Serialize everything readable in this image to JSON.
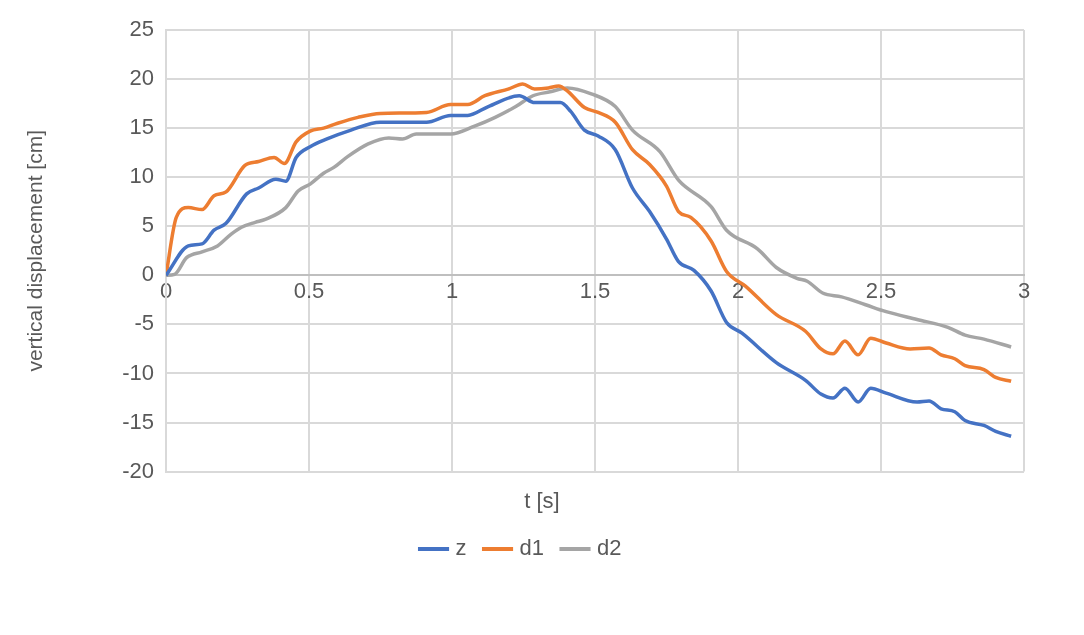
{
  "chart_data": {
    "type": "line",
    "xlabel": "t [s]",
    "ylabel": "vertical displacement [cm]",
    "xlim": [
      0,
      3
    ],
    "xticks": [
      0,
      0.5,
      1,
      1.5,
      2,
      2.5,
      3
    ],
    "ylim": [
      -20,
      25
    ],
    "yticks": [
      -20,
      -15,
      -10,
      -5,
      0,
      5,
      10,
      15,
      20,
      25
    ],
    "grid": true,
    "legend": "bottom",
    "marker": "none",
    "line_style": "solid",
    "series": [
      {
        "name": "z",
        "color": "#4472c4",
        "x": [
          0,
          0.078,
          0.126,
          0.168,
          0.21,
          0.282,
          0.324,
          0.384,
          0.419,
          0.455,
          0.504,
          0.563,
          0.647,
          0.749,
          0.911,
          0.995,
          1.055,
          1.127,
          1.235,
          1.289,
          1.379,
          1.415,
          1.463,
          1.511,
          1.571,
          1.631,
          1.691,
          1.75,
          1.792,
          1.846,
          1.906,
          1.96,
          2.014,
          2.134,
          2.236,
          2.29,
          2.332,
          2.374,
          2.42,
          2.464,
          2.518,
          2.626,
          2.668,
          2.71,
          2.758,
          2.794,
          2.86,
          2.901,
          2.955
        ],
        "values": [
          0,
          3.0,
          3.2,
          4.6,
          5.3,
          8.3,
          8.9,
          9.8,
          9.6,
          12.0,
          13.1,
          13.9,
          14.8,
          15.6,
          15.6,
          16.3,
          16.3,
          17.2,
          18.3,
          17.6,
          17.6,
          16.7,
          14.8,
          14.2,
          12.8,
          8.9,
          6.5,
          3.7,
          1.4,
          0.5,
          -1.6,
          -4.8,
          -5.9,
          -8.9,
          -10.7,
          -12.1,
          -12.5,
          -11.5,
          -12.9,
          -11.5,
          -12.0,
          -12.9,
          -12.8,
          -13.6,
          -13.9,
          -14.8,
          -15.3,
          -15.9,
          -16.4
        ]
      },
      {
        "name": "d1",
        "color": "#ed7d31",
        "x": [
          0,
          0.036,
          0.078,
          0.126,
          0.168,
          0.21,
          0.276,
          0.324,
          0.378,
          0.414,
          0.455,
          0.504,
          0.551,
          0.6,
          0.671,
          0.749,
          0.911,
          0.995,
          1.055,
          1.115,
          1.199,
          1.247,
          1.289,
          1.337,
          1.373,
          1.403,
          1.463,
          1.511,
          1.571,
          1.631,
          1.691,
          1.75,
          1.792,
          1.835,
          1.906,
          1.96,
          2.026,
          2.134,
          2.236,
          2.29,
          2.332,
          2.374,
          2.42,
          2.464,
          2.518,
          2.602,
          2.668,
          2.71,
          2.758,
          2.794,
          2.86,
          2.901,
          2.955
        ],
        "values": [
          0,
          5.9,
          6.9,
          6.7,
          8.1,
          8.5,
          11.2,
          11.6,
          12.0,
          11.4,
          13.6,
          14.7,
          15.0,
          15.5,
          16.1,
          16.5,
          16.6,
          17.4,
          17.4,
          18.3,
          19.0,
          19.5,
          19.0,
          19.1,
          19.3,
          18.8,
          17.1,
          16.6,
          15.6,
          12.8,
          11.3,
          9.1,
          6.5,
          5.9,
          3.5,
          0.4,
          -1.1,
          -4.0,
          -5.7,
          -7.5,
          -8.0,
          -6.7,
          -8.1,
          -6.4,
          -6.9,
          -7.5,
          -7.4,
          -8.1,
          -8.5,
          -9.2,
          -9.6,
          -10.4,
          -10.8
        ]
      },
      {
        "name": "d2",
        "color": "#a5a5a5",
        "x": [
          0,
          0.03,
          0.072,
          0.126,
          0.18,
          0.228,
          0.264,
          0.312,
          0.347,
          0.419,
          0.462,
          0.504,
          0.551,
          0.587,
          0.635,
          0.707,
          0.779,
          0.827,
          0.875,
          0.995,
          1.079,
          1.151,
          1.223,
          1.283,
          1.343,
          1.403,
          1.487,
          1.571,
          1.631,
          1.727,
          1.792,
          1.906,
          1.96,
          2.068,
          2.134,
          2.206,
          2.242,
          2.296,
          2.362,
          2.446,
          2.518,
          2.626,
          2.734,
          2.794,
          2.86,
          2.955
        ],
        "values": [
          0,
          0.1,
          1.8,
          2.4,
          3.0,
          4.2,
          4.9,
          5.4,
          5.7,
          6.9,
          8.6,
          9.3,
          10.4,
          11.0,
          12.1,
          13.4,
          14.0,
          13.9,
          14.4,
          14.4,
          15.2,
          16.1,
          17.2,
          18.3,
          18.7,
          19.1,
          18.5,
          17.2,
          14.8,
          12.6,
          9.7,
          7.0,
          4.6,
          2.7,
          0.8,
          -0.3,
          -0.6,
          -1.8,
          -2.2,
          -3.0,
          -3.7,
          -4.5,
          -5.3,
          -6.1,
          -6.5,
          -7.3
        ]
      }
    ]
  }
}
